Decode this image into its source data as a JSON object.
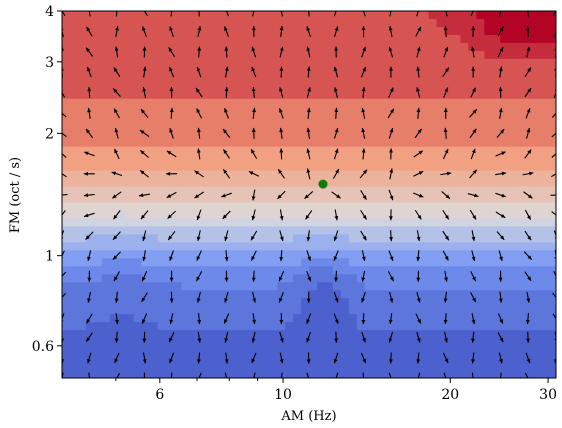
{
  "chart_data": {
    "type": "quiver-contour",
    "xlabel": "AM (Hz)",
    "ylabel": "FM (oct / s)",
    "x_scale": "log",
    "y_scale": "log",
    "xlim": [
      4,
      31
    ],
    "ylim": [
      0.5,
      4
    ],
    "x_ticks": [
      6,
      10,
      20,
      30
    ],
    "x_tick_labels": [
      "6",
      "10",
      "20",
      "30"
    ],
    "y_ticks": [
      0.6,
      1,
      2,
      3,
      4
    ],
    "y_tick_labels": [
      "0.6",
      "1",
      "2",
      "3",
      "4"
    ],
    "colormap": "coolwarm",
    "contour_levels": 16,
    "field_center": {
      "am_hz": 11.8,
      "fm_oct_per_s": 1.5
    },
    "grid": {
      "am_hz": [
        4.0,
        4.48,
        5.02,
        5.63,
        6.3,
        7.06,
        7.91,
        8.86,
        9.93,
        11.12,
        12.46,
        13.96,
        15.64,
        17.52,
        19.63,
        21.99,
        24.64,
        27.6,
        31.0
      ],
      "fm_oct_per_s": [
        0.5,
        0.56,
        0.63,
        0.7,
        0.79,
        0.89,
        1.0,
        1.12,
        1.26,
        1.41,
        1.59,
        1.78,
        2.0,
        2.24,
        2.52,
        2.83,
        3.17,
        3.56,
        4.0
      ]
    },
    "marker": {
      "am_hz": 11.8,
      "fm_oct_per_s": 1.5,
      "color": "#0f7a0f"
    },
    "arrow_color": "#000000"
  }
}
